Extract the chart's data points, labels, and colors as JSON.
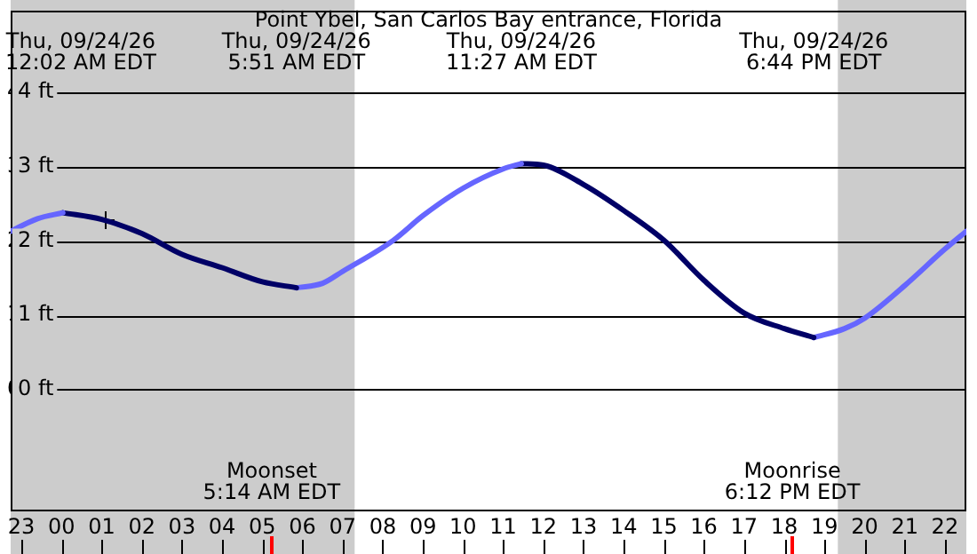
{
  "chart_data": {
    "type": "line",
    "title": "Point Ybel, San Carlos Bay entrance, Florida",
    "xlim": [
      "--09-23T22:44",
      "--09-24T22:32"
    ],
    "ylim": [
      -1.64,
      5.1
    ],
    "xticks": [
      {
        "value": "--09-23T23:00",
        "label": "23"
      },
      {
        "value": "--09-24T00:00",
        "label": "00"
      },
      {
        "value": "--09-24T01:00",
        "label": "01"
      },
      {
        "value": "--09-24T02:00",
        "label": "02"
      },
      {
        "value": "--09-24T03:00",
        "label": "03"
      },
      {
        "value": "--09-24T04:00",
        "label": "04"
      },
      {
        "value": "--09-24T05:00",
        "label": "05"
      },
      {
        "value": "--09-24T06:00",
        "label": "06"
      },
      {
        "value": "--09-24T07:00",
        "label": "07"
      },
      {
        "value": "--09-24T08:00",
        "label": "08"
      },
      {
        "value": "--09-24T09:00",
        "label": "09"
      },
      {
        "value": "--09-24T10:00",
        "label": "10"
      },
      {
        "value": "--09-24T11:00",
        "label": "11"
      },
      {
        "value": "--09-24T12:00",
        "label": "12"
      },
      {
        "value": "--09-24T13:00",
        "label": "13"
      },
      {
        "value": "--09-24T14:00",
        "label": "14"
      },
      {
        "value": "--09-24T15:00",
        "label": "15"
      },
      {
        "value": "--09-24T16:00",
        "label": "16"
      },
      {
        "value": "--09-24T17:00",
        "label": "17"
      },
      {
        "value": "--09-24T18:00",
        "label": "18"
      },
      {
        "value": "--09-24T19:00",
        "label": "19"
      },
      {
        "value": "--09-24T20:00",
        "label": "20"
      },
      {
        "value": "--09-24T21:00",
        "label": "21"
      },
      {
        "value": "--09-24T22:00",
        "label": "22"
      }
    ],
    "yticks": [
      {
        "value": 0,
        "label": "0 ft"
      },
      {
        "value": 1,
        "label": "1 ft"
      },
      {
        "value": 2,
        "label": "2 ft"
      },
      {
        "value": 3,
        "label": "3 ft"
      },
      {
        "value": 4,
        "label": "4 ft"
      }
    ],
    "grid": "y",
    "marker": "none",
    "line_style": "solid",
    "series": [
      {
        "type": "line",
        "color": "#6666ff",
        "x": [
          "--09-23T22:44",
          "--09-23T23:24",
          "--09-24T00:02"
        ],
        "values": [
          2.13,
          2.3,
          2.38
        ]
      },
      {
        "type": "line",
        "color": "#000066",
        "x": [
          "--09-24T00:02",
          "--09-24T01:00",
          "--09-24T02:00",
          "--09-24T03:00",
          "--09-24T04:00",
          "--09-24T05:00",
          "--09-24T05:51"
        ],
        "values": [
          2.38,
          2.29,
          2.1,
          1.82,
          1.64,
          1.45,
          1.37
        ]
      },
      {
        "type": "line",
        "color": "#6666ff",
        "x": [
          "--09-24T05:51",
          "--09-24T06:30",
          "--09-24T07:00",
          "--09-24T08:16",
          "--09-24T09:00",
          "--09-24T10:00",
          "--09-24T11:00",
          "--09-24T11:27"
        ],
        "values": [
          1.37,
          1.43,
          1.59,
          2.01,
          2.34,
          2.71,
          2.97,
          3.04
        ]
      },
      {
        "type": "line",
        "color": "#000066",
        "x": [
          "--09-24T11:27",
          "--09-24T12:00",
          "--09-24T13:00",
          "--09-24T14:00",
          "--09-24T15:00",
          "--09-24T16:00",
          "--09-24T17:00",
          "--09-24T18:00",
          "--09-24T18:44"
        ],
        "values": [
          3.04,
          3.02,
          2.76,
          2.41,
          2.01,
          1.47,
          1.03,
          0.82,
          0.7
        ]
      },
      {
        "type": "line",
        "color": "#6666ff",
        "x": [
          "--09-24T18:44",
          "--09-24T19:30",
          "--09-24T20:00",
          "--09-24T21:00",
          "--09-24T22:00",
          "--09-24T22:32"
        ],
        "values": [
          0.7,
          0.82,
          0.96,
          1.4,
          1.89,
          2.13
        ]
      },
      {
        "type": "scatter",
        "color": "#000000",
        "marker": "cross",
        "x": [
          "--09-24T01:06"
        ],
        "values": [
          2.28
        ]
      }
    ],
    "bands": [
      {
        "axis": "x",
        "from": "--09-23T22:44",
        "to": "--09-24T07:18",
        "color": "#cccccc"
      },
      {
        "axis": "x",
        "from": "--09-24T19:20",
        "to": "--09-24T22:32",
        "color": "#cccccc"
      }
    ],
    "ref_lines": [
      {
        "axis": "x",
        "value": "--09-24T05:14",
        "label": "Moonset\n5:14 AM EDT",
        "color": "#ff0000"
      },
      {
        "axis": "x",
        "value": "--09-24T18:12",
        "label": "Moonrise\n6:12 PM EDT",
        "color": "#ff0000"
      }
    ],
    "annotations": [
      "Thu, 09/24/26\n12:02 AM EDT",
      "Thu, 09/24/26\n5:51 AM EDT",
      "Thu, 09/24/26\n11:27 AM EDT",
      "Thu, 09/24/26\n6:44 PM EDT"
    ]
  }
}
